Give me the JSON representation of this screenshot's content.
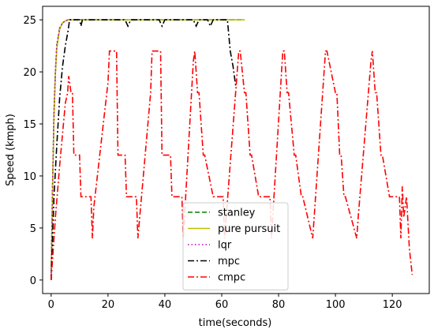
{
  "chart_data": {
    "type": "line",
    "title": "",
    "xlabel": "time(seconds)",
    "ylabel": "Speed (kmph)",
    "xlim": [
      -3,
      133
    ],
    "ylim": [
      -1.3,
      26.3
    ],
    "xticks": [
      0,
      20,
      40,
      60,
      80,
      100,
      120
    ],
    "yticks": [
      0,
      5,
      10,
      15,
      20,
      25
    ],
    "grid": false,
    "legend_position": "lower-center",
    "series": [
      {
        "name": "stanley",
        "color": "#008000",
        "dash": "dashed",
        "x": [
          0,
          0.5,
          1,
          1.5,
          2,
          3,
          4,
          5,
          6,
          7,
          10,
          20,
          30,
          40,
          50,
          60,
          65,
          68
        ],
        "y": [
          0,
          9,
          16,
          20,
          22.5,
          24.2,
          24.7,
          24.9,
          25,
          25,
          25,
          25,
          25,
          25,
          25,
          25,
          25,
          25
        ]
      },
      {
        "name": "pure pursuit",
        "color": "#bfbf00",
        "dash": "solid",
        "x": [
          0,
          0.5,
          1,
          1.5,
          2,
          3,
          4,
          5,
          6,
          7,
          10,
          20,
          30,
          40,
          50,
          60,
          65,
          68
        ],
        "y": [
          0,
          8.5,
          15.5,
          19.8,
          22.3,
          24.1,
          24.7,
          24.9,
          25,
          25,
          25,
          25,
          25,
          25,
          25,
          25,
          25,
          25
        ]
      },
      {
        "name": "lqr",
        "color": "#bf00bf",
        "dash": "dotted",
        "x": [
          0,
          0.5,
          1,
          1.5,
          2,
          3,
          4,
          5,
          6,
          7,
          10
        ],
        "y": [
          0,
          9,
          16,
          20,
          22.6,
          24.2,
          24.7,
          24.9,
          25,
          25,
          25
        ]
      },
      {
        "name": "mpc",
        "color": "#000000",
        "dash": "dashdot",
        "x": [
          0,
          0.5,
          1,
          2,
          3,
          4,
          5,
          6,
          6.5,
          7,
          10,
          10.5,
          11,
          20,
          26,
          27,
          28,
          38,
          39,
          40,
          50,
          51,
          52,
          55,
          56,
          57,
          60,
          62,
          63,
          64,
          65
        ],
        "y": [
          0,
          4,
          8,
          13,
          17.5,
          20.5,
          22.5,
          24,
          25,
          25,
          25,
          24.4,
          25,
          25,
          25,
          24.4,
          25,
          25,
          24.4,
          25,
          25,
          24.4,
          25,
          25,
          24.4,
          25,
          25,
          25,
          22,
          20.5,
          18.5
        ]
      },
      {
        "name": "cmpc",
        "color": "#ff0000",
        "dash": "dashdot",
        "x": [
          0,
          1.5,
          3,
          5,
          5.8,
          6.2,
          7,
          7.5,
          8,
          10,
          10.5,
          11,
          14,
          14.5,
          15,
          20,
          20.5,
          23,
          23.5,
          26,
          26.5,
          30,
          30.5,
          35,
          35.5,
          38.5,
          39,
          42,
          42.5,
          46,
          46.5,
          50,
          50.5,
          51.5,
          52,
          53.5,
          54,
          57,
          57.5,
          60.5,
          61,
          66,
          66.5,
          68,
          68.5,
          70,
          70.5,
          73,
          73.5,
          77,
          77.5,
          81.5,
          82,
          83,
          83.5,
          85.5,
          86,
          88,
          88.5,
          92,
          92.5,
          96.5,
          97,
          100,
          100.5,
          101.5,
          102,
          103,
          103.5,
          107.5,
          108,
          112.5,
          113,
          114,
          114.5,
          116,
          116.5,
          119,
          119.5,
          122.5,
          123,
          123.5,
          124,
          125,
          126,
          127
        ],
        "y": [
          0,
          6,
          11,
          17,
          18,
          19.6,
          18,
          18,
          12,
          12,
          8,
          8,
          8,
          4,
          7,
          19,
          22,
          22,
          12,
          12,
          8,
          8,
          4,
          18,
          22,
          22,
          12,
          12,
          8,
          8,
          4,
          21,
          22,
          18,
          18,
          12,
          12,
          8,
          8,
          8,
          4,
          22,
          22,
          18,
          18,
          12,
          12,
          8,
          8,
          8,
          4,
          22,
          22,
          18,
          18,
          12,
          12,
          8,
          8,
          4,
          6,
          22,
          22,
          18,
          18,
          12,
          12,
          8,
          8,
          4,
          6,
          21,
          22,
          18,
          18,
          12,
          12,
          8,
          8,
          8,
          4,
          9,
          6,
          8,
          3,
          0.5
        ]
      }
    ]
  }
}
